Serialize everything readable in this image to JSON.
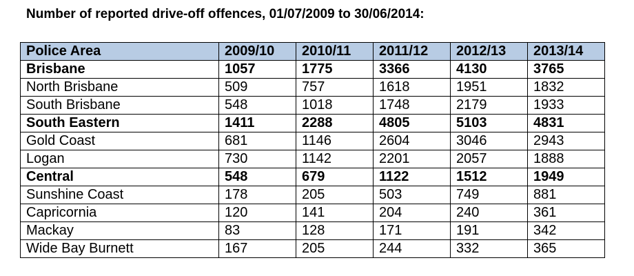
{
  "title": "Number of reported drive-off offences, 01/07/2009 to 30/06/2014:",
  "colors": {
    "header_bg": "#b8cce4",
    "border": "#000000",
    "text": "#000000"
  },
  "table": {
    "headers": [
      "Police Area",
      "2009/10",
      "2010/11",
      "2011/12",
      "2012/13",
      "2013/14"
    ],
    "rows": [
      {
        "area": "Brisbane",
        "bold": true,
        "values": [
          "1057",
          "1775",
          "3366",
          "4130",
          "3765"
        ]
      },
      {
        "area": "North Brisbane",
        "bold": false,
        "values": [
          "509",
          "757",
          "1618",
          "1951",
          "1832"
        ]
      },
      {
        "area": "South Brisbane",
        "bold": false,
        "values": [
          "548",
          "1018",
          "1748",
          "2179",
          "1933"
        ]
      },
      {
        "area": "South Eastern",
        "bold": true,
        "values": [
          "1411",
          "2288",
          "4805",
          "5103",
          "4831"
        ]
      },
      {
        "area": "Gold Coast",
        "bold": false,
        "values": [
          "681",
          "1146",
          "2604",
          "3046",
          "2943"
        ]
      },
      {
        "area": "Logan",
        "bold": false,
        "values": [
          "730",
          "1142",
          "2201",
          "2057",
          "1888"
        ]
      },
      {
        "area": "Central",
        "bold": true,
        "values": [
          "548",
          "679",
          "1122",
          "1512",
          "1949"
        ]
      },
      {
        "area": "Sunshine Coast",
        "bold": false,
        "values": [
          "178",
          "205",
          "503",
          "749",
          "881"
        ]
      },
      {
        "area": "Capricornia",
        "bold": false,
        "values": [
          "120",
          "141",
          "204",
          "240",
          "361"
        ]
      },
      {
        "area": "Mackay",
        "bold": false,
        "values": [
          "83",
          "128",
          "171",
          "191",
          "342"
        ]
      },
      {
        "area": "Wide Bay Burnett",
        "bold": false,
        "values": [
          "167",
          "205",
          "244",
          "332",
          "365"
        ]
      }
    ]
  }
}
